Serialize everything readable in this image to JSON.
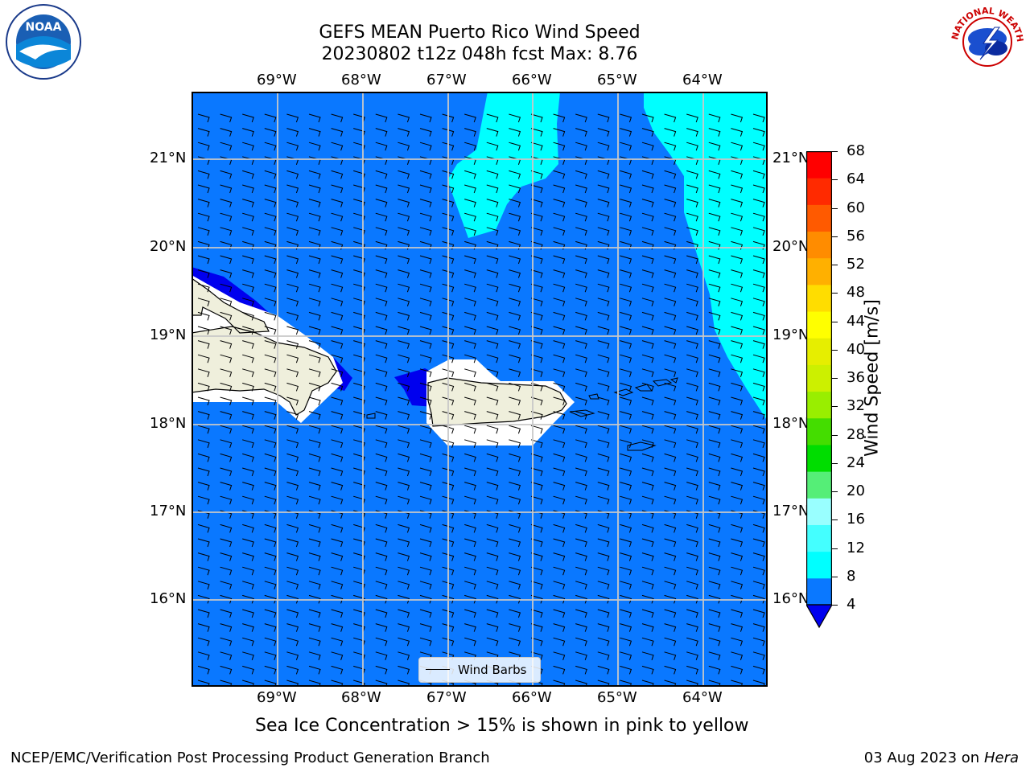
{
  "header": {
    "title_line1": "GEFS MEAN Puerto Rico Wind Speed",
    "title_line2": "20230802 t12z 048h fcst   Max: 8.76"
  },
  "map": {
    "lon_labels": [
      "69°W",
      "68°W",
      "67°W",
      "66°W",
      "65°W",
      "64°W"
    ],
    "lat_labels": [
      "21°N",
      "20°N",
      "19°N",
      "18°N",
      "17°N",
      "16°N"
    ],
    "legend_label": "Wind Barbs",
    "colors": {
      "ocean": "#0a78ff",
      "high_wind": "#00ffff",
      "low_wind": "#0000ee",
      "land": "#efefdc"
    }
  },
  "colorbar": {
    "label": "Wind Speed [m/s]",
    "ticks": [
      "68",
      "64",
      "60",
      "56",
      "52",
      "48",
      "44",
      "40",
      "36",
      "32",
      "28",
      "24",
      "20",
      "16",
      "12",
      "8",
      "4"
    ],
    "colors_bottom_to_top": [
      "#0a78ff",
      "#00ffff",
      "#44ffff",
      "#99ffff",
      "#55ee77",
      "#00dd00",
      "#44dd00",
      "#99ee00",
      "#ccf000",
      "#e6ee00",
      "#ffff00",
      "#ffdd00",
      "#ffb000",
      "#ff8c00",
      "#ff5a00",
      "#ff2a00",
      "#ff0000"
    ],
    "extend_color": "#0000ee"
  },
  "caption": "Sea Ice Concentration > 15% is shown in pink to yellow",
  "footer": {
    "left": "NCEP/EMC/Verification Post Processing Product Generation Branch",
    "right_date": "03 Aug 2023 on",
    "right_host": "Hera"
  },
  "logos": {
    "noaa_text": "NOAA",
    "nws_text": "NATIONAL WEATHER SERVICE"
  }
}
